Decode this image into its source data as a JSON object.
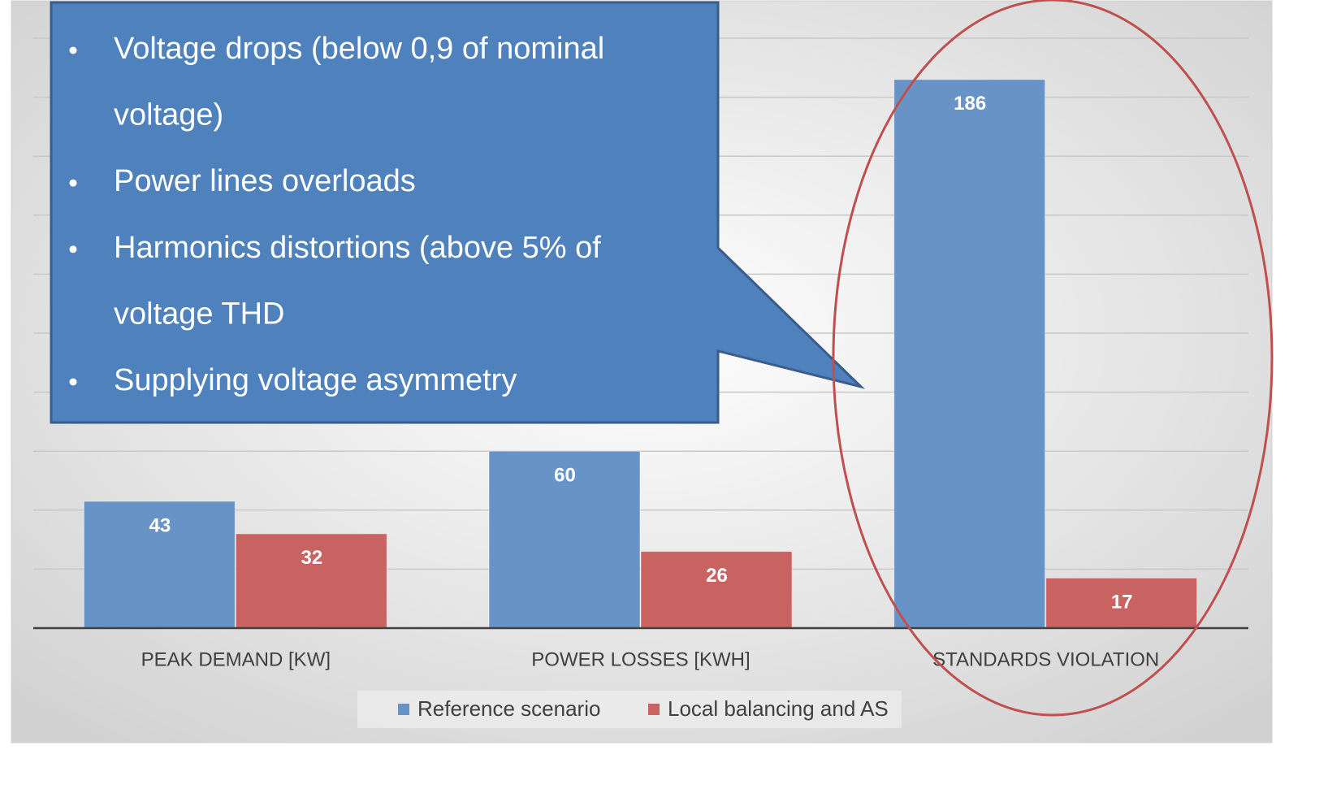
{
  "chart_data": {
    "type": "bar",
    "categories": [
      "PEAK DEMAND [KW]",
      "POWER LOSSES [KWH]",
      "STANDARDS VIOLATION"
    ],
    "series": [
      {
        "name": "Reference scenario",
        "color": "#6893c7",
        "values": [
          43,
          60,
          186
        ]
      },
      {
        "name": "Local balancing and AS",
        "color": "#c96361",
        "values": [
          32,
          26,
          17
        ]
      }
    ],
    "ylim": [
      0,
      200
    ],
    "yticks": [
      0,
      20,
      40,
      60,
      80,
      100,
      120,
      140,
      160,
      180,
      200
    ],
    "grid": true,
    "ytick_labels": false,
    "legend": "bottom"
  },
  "callout": {
    "items": [
      [
        "Voltage drops (below 0,9 of nominal",
        "voltage)"
      ],
      [
        "Power lines overloads"
      ],
      [
        "Harmonics distortions (above 5% of",
        "voltage THD"
      ],
      [
        "Supplying voltage asymmetry"
      ]
    ]
  }
}
